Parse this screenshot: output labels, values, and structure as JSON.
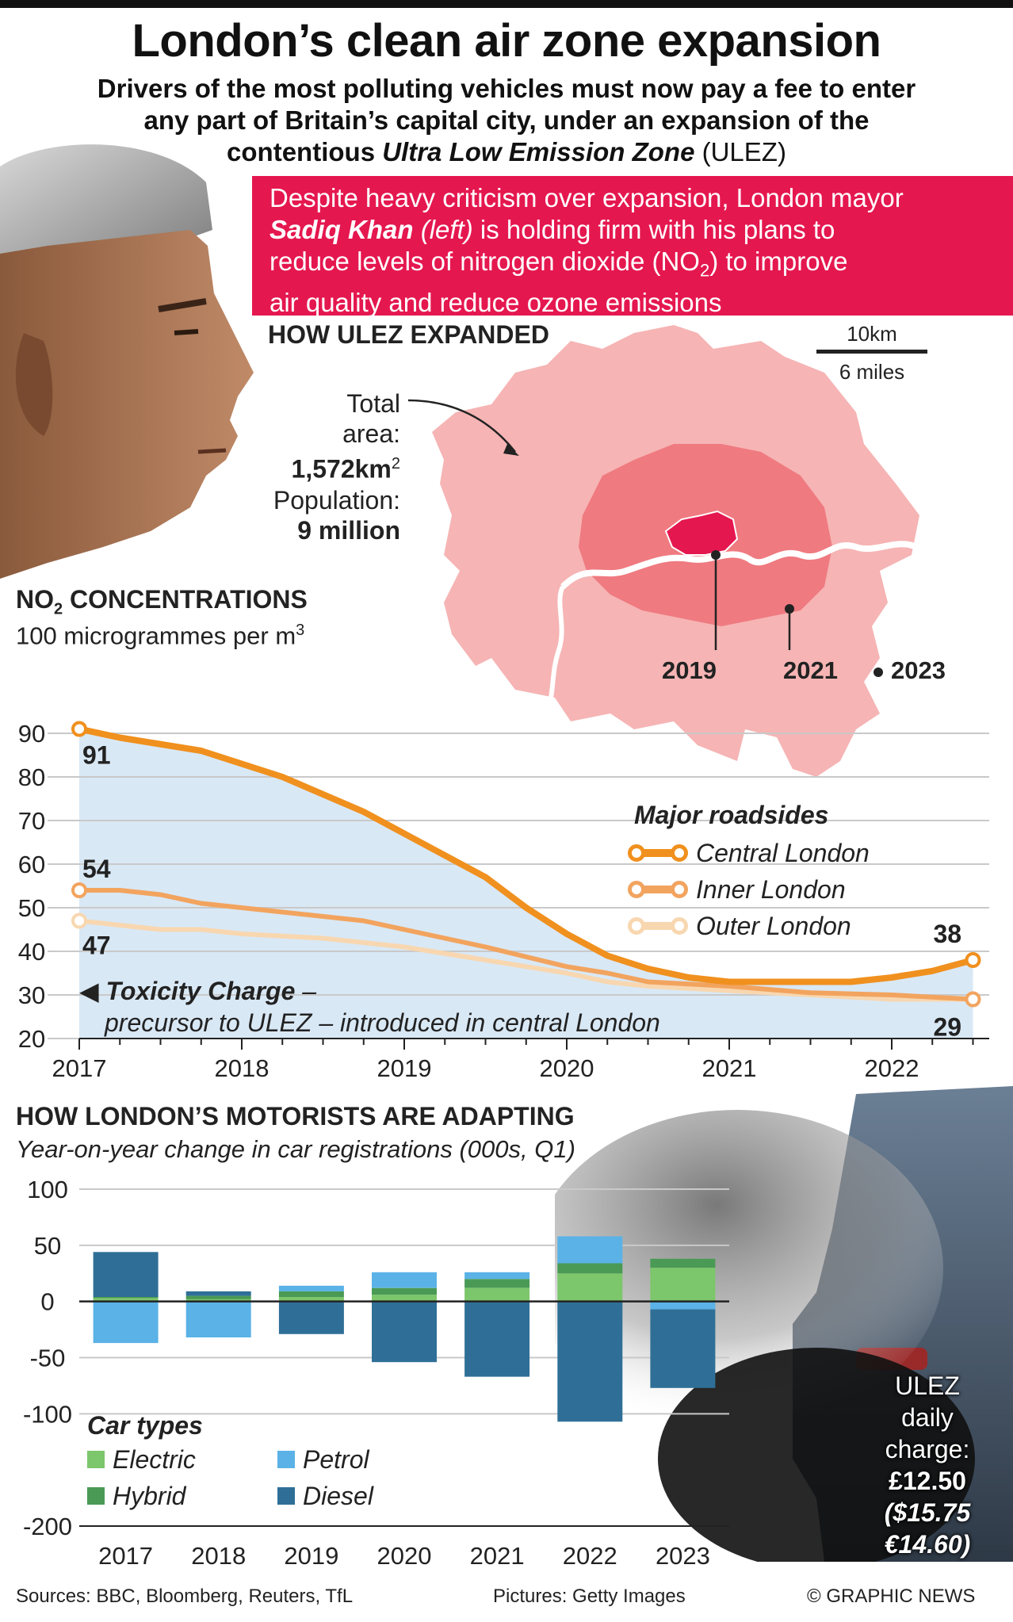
{
  "header": {
    "title": "London’s clean air zone expansion",
    "subtitle_l1": "Drivers of the most polluting vehicles must now pay a fee to enter",
    "subtitle_l2": "any part of Britain’s capital city, under an expansion of the",
    "subtitle_l3a": "contentious ",
    "subtitle_l3b": "Ultra Low Emission Zone",
    "subtitle_l3c": " (ULEZ)"
  },
  "intro": {
    "l1": "Despite heavy criticism over expansion, London mayor",
    "name": "Sadiq Khan",
    "left": " (left)",
    "l2rest": " is holding firm with his plans to",
    "l3a": "reduce levels of nitrogen dioxide (NO",
    "l3sub": "2",
    "l3b": ") to improve",
    "l4": "air quality and reduce ozone emissions"
  },
  "map": {
    "title": "HOW ULEZ EXPANDED",
    "scale_km": "10km",
    "scale_miles": "6 miles",
    "area_l1": "Total",
    "area_l2": "area:",
    "area_value": "1,572km",
    "area_sup": "2",
    "pop_label": "Population:",
    "pop_value": "9 million",
    "zone_labels": [
      "2019",
      "2021",
      "2023"
    ],
    "colors": {
      "zone2023": "#f6b4b4",
      "zone2021": "#ef7a80",
      "zone2019": "#e5174f",
      "river": "#ffffff"
    }
  },
  "no2": {
    "title_a": "NO",
    "title_sub": "2",
    "title_b": " CONCENTRATIONS",
    "unit_a": "100 microgrammes per m",
    "unit_sup": "3",
    "toxicity_bold": "Toxicity Charge",
    "toxicity_dash": " –",
    "toxicity_l2": "precursor to ULEZ – introduced in central London",
    "legend_title": "Major roadsides"
  },
  "adapt": {
    "title": "HOW LONDON’S MOTORISTS ARE ADAPTING",
    "subtitle": "Year-on-year change in car registrations (000s, Q1)",
    "legend_title": "Car types"
  },
  "charge": {
    "l1": "ULEZ",
    "l2": "daily",
    "l3": "charge:",
    "gbp": "£12.50",
    "usd": "($15.75",
    "eur": "€14.60)"
  },
  "footer": {
    "sources": "Sources: BBC, Bloomberg, Reuters, TfL",
    "pictures": "Pictures: Getty Images",
    "credit": "© GRAPHIC NEWS"
  },
  "chart_data": [
    {
      "type": "line",
      "ylim": [
        20,
        100
      ],
      "yticks": [
        90,
        80,
        70,
        60,
        50,
        40,
        30,
        20
      ],
      "x_ticks": [
        "2017",
        "2018",
        "2019",
        "2020",
        "2021",
        "2022"
      ],
      "x_range": [
        2017,
        2022.6
      ],
      "area_fill": "#d9e8f5",
      "series": [
        {
          "name": "Central London",
          "color": "#f0901e",
          "points": [
            [
              2017,
              91
            ],
            [
              2017.25,
              89
            ],
            [
              2017.75,
              86
            ],
            [
              2018.25,
              80
            ],
            [
              2018.75,
              72
            ],
            [
              2019.0,
              67
            ],
            [
              2019.5,
              57
            ],
            [
              2019.75,
              50
            ],
            [
              2020.0,
              44
            ],
            [
              2020.25,
              39
            ],
            [
              2020.5,
              36
            ],
            [
              2020.75,
              34
            ],
            [
              2021.0,
              33
            ],
            [
              2021.5,
              33
            ],
            [
              2021.75,
              33
            ],
            [
              2022.0,
              34
            ],
            [
              2022.25,
              35.5
            ],
            [
              2022.5,
              38
            ]
          ],
          "start_label": "91",
          "end_label": "38"
        },
        {
          "name": "Inner London",
          "color": "#f2a45f",
          "points": [
            [
              2017,
              54
            ],
            [
              2017.25,
              54
            ],
            [
              2017.5,
              53
            ],
            [
              2017.75,
              51
            ],
            [
              2018.25,
              49
            ],
            [
              2018.75,
              47
            ],
            [
              2019.0,
              45
            ],
            [
              2019.5,
              41
            ],
            [
              2020.0,
              36.5
            ],
            [
              2020.25,
              35
            ],
            [
              2020.5,
              33
            ],
            [
              2020.75,
              32.5
            ],
            [
              2021.0,
              32
            ],
            [
              2021.5,
              30.5
            ],
            [
              2022.0,
              30
            ],
            [
              2022.5,
              29
            ]
          ],
          "start_label": "54",
          "end_label": "29"
        },
        {
          "name": "Outer London",
          "color": "#f8d7b0",
          "points": [
            [
              2017,
              47
            ],
            [
              2017.25,
              46
            ],
            [
              2017.5,
              45
            ],
            [
              2017.75,
              45
            ],
            [
              2018.0,
              44
            ],
            [
              2018.5,
              43
            ],
            [
              2019.0,
              41
            ],
            [
              2019.5,
              38
            ],
            [
              2020.0,
              35
            ],
            [
              2020.25,
              33
            ],
            [
              2020.5,
              32
            ],
            [
              2021.0,
              31
            ],
            [
              2021.5,
              30
            ],
            [
              2022.0,
              29
            ],
            [
              2022.5,
              29
            ]
          ],
          "start_label": "47",
          "end_label": ""
        }
      ]
    },
    {
      "type": "bar",
      "stacked": true,
      "ylim": [
        -200,
        100
      ],
      "yticks": [
        100,
        50,
        0,
        -50,
        -100,
        -200
      ],
      "categories": [
        "2017",
        "2018",
        "2019",
        "2020",
        "2021",
        "2022",
        "2023"
      ],
      "series": [
        {
          "name": "Electric",
          "color": "#7cc66b",
          "values": [
            3,
            2,
            4,
            6,
            12,
            25,
            30
          ]
        },
        {
          "name": "Hybrid",
          "color": "#4a9a55",
          "values": [
            1,
            3,
            5,
            6,
            8,
            9,
            8
          ]
        },
        {
          "name": "Petrol",
          "color": "#5ab2e6",
          "values": [
            -37,
            -32,
            5,
            14,
            6,
            24,
            -7
          ]
        },
        {
          "name": "Diesel",
          "color": "#2f6f97",
          "values": [
            40,
            4,
            -29,
            -54,
            -67,
            -107,
            -70
          ]
        }
      ]
    }
  ]
}
